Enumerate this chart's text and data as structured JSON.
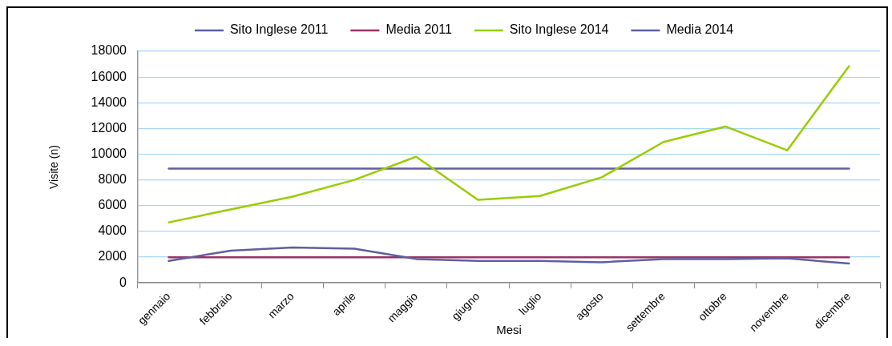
{
  "chart_data": {
    "type": "line",
    "xlabel": "Mesi",
    "ylabel": "Visite (n)",
    "categories": [
      "gennaio",
      "febbraio",
      "marzo",
      "aprile",
      "maggio",
      "giugno",
      "luglio",
      "agosto",
      "settembre",
      "ottobre",
      "novembre",
      "dicembre"
    ],
    "series": [
      {
        "name": "Sito Inglese 2011",
        "color": "#5f5f9f",
        "values": [
          1700,
          2500,
          2750,
          2650,
          1850,
          1700,
          1700,
          1600,
          1850,
          1850,
          1900,
          1500
        ]
      },
      {
        "name": "Media 2011",
        "color": "#993366",
        "values": [
          1980,
          1980,
          1980,
          1980,
          1980,
          1980,
          1980,
          1980,
          1980,
          1980,
          1980,
          1980
        ]
      },
      {
        "name": "Sito Inglese 2014",
        "color": "#99cc00",
        "values": [
          4700,
          5700,
          6700,
          8000,
          9800,
          6450,
          6750,
          8200,
          10950,
          12150,
          10300,
          16850
        ]
      },
      {
        "name": "Media 2014",
        "color": "#5f5f9f",
        "values": [
          8880,
          8880,
          8880,
          8880,
          8880,
          8880,
          8880,
          8880,
          8880,
          8880,
          8880,
          8880
        ]
      }
    ],
    "ylim": [
      0,
      18000
    ],
    "yticks": [
      0,
      2000,
      4000,
      6000,
      8000,
      10000,
      12000,
      14000,
      16000,
      18000
    ],
    "grid": "y",
    "legend": "top",
    "marker": "none"
  }
}
